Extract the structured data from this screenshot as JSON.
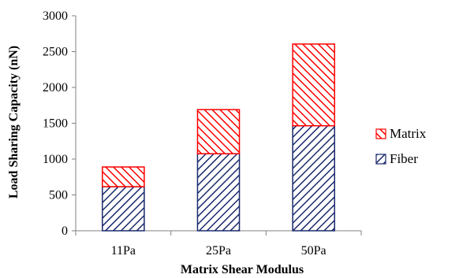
{
  "chart_data": {
    "type": "bar",
    "stacked": true,
    "categories": [
      "11Pa",
      "25Pa",
      "50Pa"
    ],
    "series": [
      {
        "name": "Fiber",
        "values": [
          615,
          1075,
          1465
        ],
        "color": "#1a2a6c",
        "pattern": "diagonal-hatch-up"
      },
      {
        "name": "Matrix",
        "values": [
          275,
          615,
          1140
        ],
        "color": "#ff0000",
        "pattern": "diagonal-hatch-down"
      }
    ],
    "xlabel": "Matrix Shear Modulus",
    "ylabel": "Load Sharing Capacity (nN)",
    "ylim": [
      0,
      3000
    ],
    "yticks": [
      0,
      500,
      1000,
      1500,
      2000,
      2500,
      3000
    ],
    "grid": false,
    "legend_position": "right"
  }
}
